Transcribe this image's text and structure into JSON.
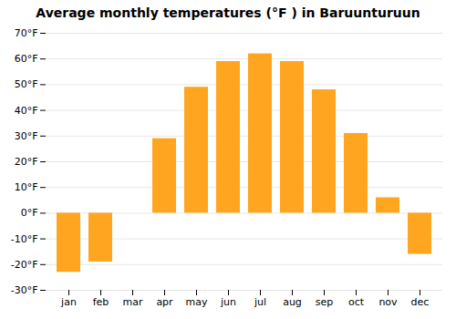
{
  "chart_data": {
    "type": "bar",
    "title": "Average monthly temperatures (°F ) in Baruunturuun",
    "categories": [
      "jan",
      "feb",
      "mar",
      "apr",
      "may",
      "jun",
      "jul",
      "aug",
      "sep",
      "oct",
      "nov",
      "dec"
    ],
    "values": [
      -23,
      -19,
      0,
      29,
      49,
      59,
      62,
      59,
      48,
      31,
      6,
      -16
    ],
    "color": "#FFA520",
    "ylim": [
      -30,
      70
    ],
    "yticks": [
      {
        "value": -30,
        "label": "-30°F"
      },
      {
        "value": -20,
        "label": "-20°F"
      },
      {
        "value": -10,
        "label": "-10°F"
      },
      {
        "value": 0,
        "label": "0°F"
      },
      {
        "value": 10,
        "label": "10°F"
      },
      {
        "value": 20,
        "label": "20°F"
      },
      {
        "value": 30,
        "label": "30°F"
      },
      {
        "value": 40,
        "label": "40°F"
      },
      {
        "value": 50,
        "label": "50°F"
      },
      {
        "value": 60,
        "label": "60°F"
      },
      {
        "value": 70,
        "label": "70°F"
      }
    ],
    "grid": true
  }
}
